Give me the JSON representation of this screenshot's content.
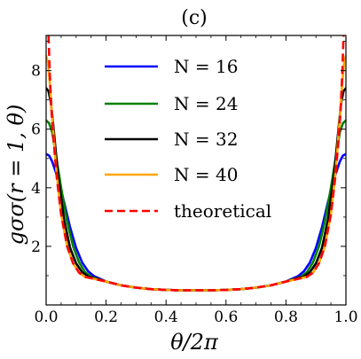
{
  "chart_data": {
    "type": "line",
    "title": "(c)",
    "xlabel": "θ/2π",
    "ylabel": "gσσ(r = 1, θ)",
    "xlim": [
      0.0,
      1.0
    ],
    "ylim": [
      0.0,
      9.2
    ],
    "x_ticks": [
      "0.0",
      "0.2",
      "0.4",
      "0.6",
      "0.8",
      "1.0"
    ],
    "y_ticks": [
      "2",
      "4",
      "6",
      "8"
    ],
    "grid": false,
    "legend_position": "top-center",
    "series": [
      {
        "name": "N = 16",
        "color": "#0000ff",
        "dash": "solid",
        "x": [
          0,
          0.01,
          0.02,
          0.04,
          0.06,
          0.08,
          0.1,
          0.12,
          0.14,
          0.16,
          0.2,
          0.25,
          0.3,
          0.35,
          0.4,
          0.45,
          0.5,
          0.55,
          0.6,
          0.65,
          0.7,
          0.75,
          0.8,
          0.84,
          0.86,
          0.88,
          0.9,
          0.92,
          0.94,
          0.96,
          0.98,
          0.99,
          1.0
        ],
        "y": [
          5.15,
          5.1,
          4.9,
          4.3,
          3.5,
          2.65,
          1.95,
          1.45,
          1.15,
          0.98,
          0.8,
          0.67,
          0.59,
          0.54,
          0.51,
          0.5,
          0.5,
          0.5,
          0.51,
          0.54,
          0.59,
          0.67,
          0.8,
          0.98,
          1.15,
          1.45,
          1.95,
          2.65,
          3.5,
          4.3,
          4.9,
          5.1,
          5.15
        ]
      },
      {
        "name": "N = 24",
        "color": "#008000",
        "dash": "solid",
        "x": [
          0,
          0.01,
          0.02,
          0.03,
          0.05,
          0.07,
          0.09,
          0.11,
          0.13,
          0.15,
          0.2,
          0.25,
          0.3,
          0.35,
          0.4,
          0.45,
          0.5,
          0.55,
          0.6,
          0.65,
          0.7,
          0.75,
          0.8,
          0.85,
          0.87,
          0.89,
          0.91,
          0.93,
          0.95,
          0.97,
          0.98,
          0.99,
          1.0
        ],
        "y": [
          6.3,
          6.2,
          5.9,
          5.3,
          4.0,
          2.85,
          2.0,
          1.45,
          1.12,
          0.96,
          0.8,
          0.67,
          0.59,
          0.54,
          0.51,
          0.5,
          0.5,
          0.5,
          0.51,
          0.54,
          0.59,
          0.67,
          0.8,
          0.96,
          1.12,
          1.45,
          2.0,
          2.85,
          4.0,
          5.3,
          5.9,
          6.2,
          6.3
        ]
      },
      {
        "name": "N = 32",
        "color": "#000000",
        "dash": "solid",
        "x": [
          0,
          0.008,
          0.016,
          0.025,
          0.04,
          0.06,
          0.08,
          0.1,
          0.12,
          0.14,
          0.2,
          0.25,
          0.3,
          0.35,
          0.4,
          0.45,
          0.5,
          0.55,
          0.6,
          0.65,
          0.7,
          0.75,
          0.8,
          0.86,
          0.88,
          0.9,
          0.92,
          0.94,
          0.96,
          0.975,
          0.984,
          0.992,
          1.0
        ],
        "y": [
          7.4,
          7.3,
          6.9,
          6.0,
          4.4,
          2.9,
          1.95,
          1.42,
          1.12,
          0.97,
          0.8,
          0.67,
          0.59,
          0.54,
          0.51,
          0.5,
          0.5,
          0.5,
          0.51,
          0.54,
          0.59,
          0.67,
          0.8,
          0.97,
          1.12,
          1.42,
          1.95,
          2.9,
          4.4,
          6.0,
          6.9,
          7.3,
          7.4
        ]
      },
      {
        "name": "N = 40",
        "color": "#ffa500",
        "dash": "solid",
        "x": [
          0,
          0.006,
          0.012,
          0.02,
          0.035,
          0.05,
          0.07,
          0.09,
          0.11,
          0.13,
          0.2,
          0.25,
          0.3,
          0.35,
          0.4,
          0.45,
          0.5,
          0.55,
          0.6,
          0.65,
          0.7,
          0.75,
          0.8,
          0.87,
          0.89,
          0.91,
          0.93,
          0.95,
          0.965,
          0.98,
          0.988,
          0.994,
          1.0
        ],
        "y": [
          8.5,
          8.3,
          7.6,
          6.4,
          4.5,
          3.1,
          2.0,
          1.42,
          1.1,
          0.96,
          0.8,
          0.67,
          0.59,
          0.54,
          0.51,
          0.5,
          0.5,
          0.5,
          0.51,
          0.54,
          0.59,
          0.67,
          0.8,
          0.96,
          1.1,
          1.42,
          2.0,
          3.1,
          4.5,
          6.4,
          7.6,
          8.3,
          8.5
        ]
      },
      {
        "name": "theoretical",
        "color": "#ff0000",
        "dash": "dashed",
        "x": [
          0.008,
          0.012,
          0.018,
          0.025,
          0.035,
          0.05,
          0.07,
          0.09,
          0.11,
          0.13,
          0.2,
          0.25,
          0.3,
          0.35,
          0.4,
          0.45,
          0.5,
          0.55,
          0.6,
          0.65,
          0.7,
          0.75,
          0.8,
          0.87,
          0.89,
          0.91,
          0.93,
          0.95,
          0.965,
          0.975,
          0.982,
          0.988,
          0.992
        ],
        "y": [
          9.2,
          7.9,
          6.6,
          5.6,
          4.4,
          3.1,
          2.0,
          1.42,
          1.1,
          0.96,
          0.8,
          0.67,
          0.59,
          0.54,
          0.51,
          0.5,
          0.5,
          0.5,
          0.51,
          0.54,
          0.59,
          0.67,
          0.8,
          0.96,
          1.1,
          1.42,
          2.0,
          3.1,
          4.4,
          5.6,
          6.6,
          7.9,
          9.2
        ]
      }
    ]
  }
}
